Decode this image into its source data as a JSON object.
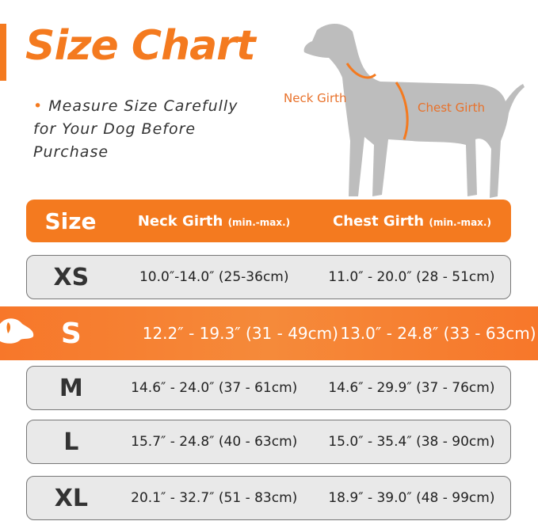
{
  "title": "Size Chart",
  "note": "Measure Size Carefully for Your Dog Before Purchase",
  "diagram_labels": {
    "neck": "Neck Girth",
    "chest": "Chest Girth"
  },
  "colors": {
    "accent": "#f47a1f",
    "row_bg": "#e9e9e9",
    "text": "#222222"
  },
  "table": {
    "headers": {
      "size": "Size",
      "neck": "Neck Girth",
      "neck_unit": "(min.-max.)",
      "chest": "Chest Girth",
      "chest_unit": "(min.-max.)"
    },
    "rows": [
      {
        "size": "XS",
        "neck": "10.0″-14.0″ (25-36cm)",
        "chest": "11.0″ - 20.0″ (28 - 51cm)"
      },
      {
        "size": "S",
        "neck": "12.2″ - 19.3″ (31 - 49cm)",
        "chest": "13.0″ - 24.8″ (33 - 63cm)",
        "highlighted": true
      },
      {
        "size": "M",
        "neck": "14.6″ - 24.0″ (37 - 61cm)",
        "chest": "14.6″ - 29.9″ (37 - 76cm)"
      },
      {
        "size": "L",
        "neck": "15.7″ - 24.8″ (40 - 63cm)",
        "chest": "15.0″ - 35.4″ (38 - 90cm)"
      },
      {
        "size": "XL",
        "neck": "20.1″ - 32.7″ (51 - 83cm)",
        "chest": "18.9″ - 39.0″ (48 - 99cm)"
      }
    ]
  }
}
